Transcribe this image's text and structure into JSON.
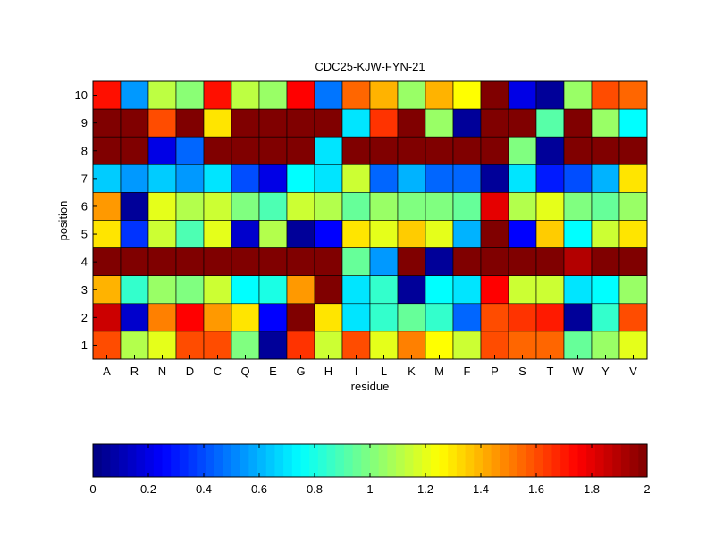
{
  "chart_data": {
    "type": "heatmap",
    "title": "CDC25-KJW-FYN-21",
    "xlabel": "residue",
    "ylabel": "position",
    "x_categories": [
      "A",
      "R",
      "N",
      "D",
      "C",
      "Q",
      "E",
      "G",
      "H",
      "I",
      "L",
      "K",
      "M",
      "F",
      "P",
      "S",
      "T",
      "W",
      "Y",
      "V"
    ],
    "y_categories": [
      "10",
      "9",
      "8",
      "7",
      "6",
      "5",
      "4",
      "3",
      "2",
      "1"
    ],
    "values": [
      [
        1.72,
        0.55,
        1.12,
        1.02,
        1.72,
        1.12,
        1.05,
        1.75,
        0.48,
        1.55,
        1.4,
        1.05,
        1.4,
        1.25,
        2.0,
        0.2,
        0.05,
        1.05,
        1.6,
        1.55
      ],
      [
        2.0,
        2.0,
        1.6,
        2.0,
        1.3,
        2.0,
        2.0,
        2.0,
        2.0,
        0.7,
        1.65,
        2.0,
        1.05,
        0.05,
        2.0,
        2.0,
        0.92,
        2.0,
        1.05,
        0.75
      ],
      [
        2.0,
        2.0,
        0.2,
        0.45,
        2.0,
        2.0,
        2.0,
        2.0,
        0.7,
        2.0,
        2.0,
        2.0,
        2.0,
        2.0,
        2.0,
        1.0,
        0.05,
        2.0,
        2.0,
        2.0
      ],
      [
        0.65,
        0.55,
        0.65,
        0.55,
        0.7,
        0.4,
        0.2,
        0.75,
        0.7,
        1.15,
        0.45,
        0.6,
        0.45,
        0.45,
        0.05,
        0.7,
        0.3,
        0.4,
        0.6,
        1.3
      ],
      [
        1.45,
        0.05,
        1.2,
        1.1,
        1.15,
        1.0,
        0.9,
        1.15,
        1.1,
        0.95,
        1.05,
        1.0,
        1.0,
        0.95,
        1.8,
        1.1,
        1.2,
        1.0,
        0.95,
        1.05
      ],
      [
        1.3,
        0.35,
        1.15,
        0.9,
        1.2,
        0.15,
        1.1,
        0.05,
        0.25,
        1.3,
        1.2,
        1.35,
        1.2,
        0.6,
        2.0,
        0.25,
        1.35,
        0.75,
        1.15,
        1.3
      ],
      [
        2.0,
        2.0,
        2.0,
        2.0,
        2.0,
        2.0,
        2.0,
        2.0,
        2.0,
        0.95,
        0.55,
        2.0,
        0.05,
        2.0,
        2.0,
        2.0,
        2.0,
        1.9,
        2.0,
        2.0
      ],
      [
        1.4,
        0.85,
        1.05,
        1.0,
        1.15,
        0.75,
        0.8,
        1.45,
        2.0,
        0.7,
        0.85,
        0.05,
        0.75,
        0.7,
        1.75,
        1.15,
        1.15,
        0.7,
        0.75,
        1.05
      ],
      [
        1.85,
        0.15,
        1.5,
        1.75,
        1.45,
        1.3,
        0.25,
        2.0,
        1.3,
        0.7,
        0.85,
        0.95,
        0.85,
        0.45,
        1.6,
        1.65,
        1.7,
        0.05,
        0.85,
        1.6
      ],
      [
        1.6,
        1.1,
        1.2,
        1.6,
        1.6,
        1.0,
        0.05,
        1.65,
        1.15,
        1.6,
        1.2,
        1.5,
        1.25,
        1.15,
        1.6,
        1.55,
        1.55,
        0.95,
        1.05,
        1.2
      ]
    ],
    "colormap": "jet",
    "clim": [
      0,
      2
    ],
    "colorbar": {
      "placement": "bottom",
      "ticks": [
        "0",
        "0.2",
        "0.4",
        "0.6",
        "0.8",
        "1",
        "1.2",
        "1.4",
        "1.6",
        "1.8",
        "2"
      ]
    },
    "grid": true
  }
}
